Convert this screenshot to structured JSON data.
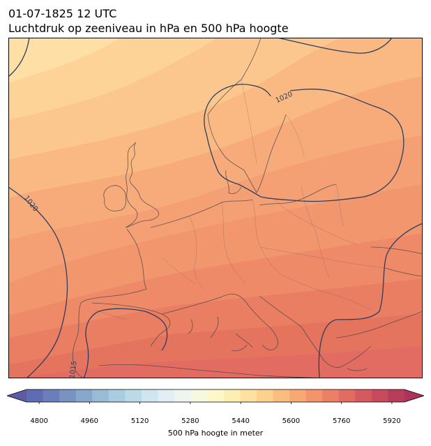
{
  "header": {
    "date": "01-07-1825 12 UTC",
    "title": "Luchtdruk op zeeniveau in hPa en 500 hPa hoogte"
  },
  "map": {
    "isobar_labels": [
      "1020",
      "1020",
      "1015"
    ],
    "coast_color": "#444444",
    "isobar_color": "#2c3e5c"
  },
  "colorbar": {
    "label": "500 hPa hoogte in meter",
    "ticks": [
      "4800",
      "4960",
      "5120",
      "5280",
      "5440",
      "5600",
      "5760",
      "5920"
    ],
    "min": 4760,
    "max": 5960,
    "step": 40,
    "colors": [
      "#5f6bb3",
      "#6b7dba",
      "#7893c2",
      "#87a8cc",
      "#98bbd6",
      "#a9cce0",
      "#bcd9e8",
      "#cfe5ef",
      "#e1eff4",
      "#eef5f0",
      "#f6f8e0",
      "#fbf7c9",
      "#fdefb4",
      "#fde1a0",
      "#fcd08d",
      "#fbbd7e",
      "#f8a874",
      "#f3946d",
      "#eb8066",
      "#e06c62",
      "#d45a5f",
      "#c84a5d",
      "#b83d5a"
    ],
    "extend_low": "#5e5aa4",
    "extend_high": "#ab3458"
  }
}
